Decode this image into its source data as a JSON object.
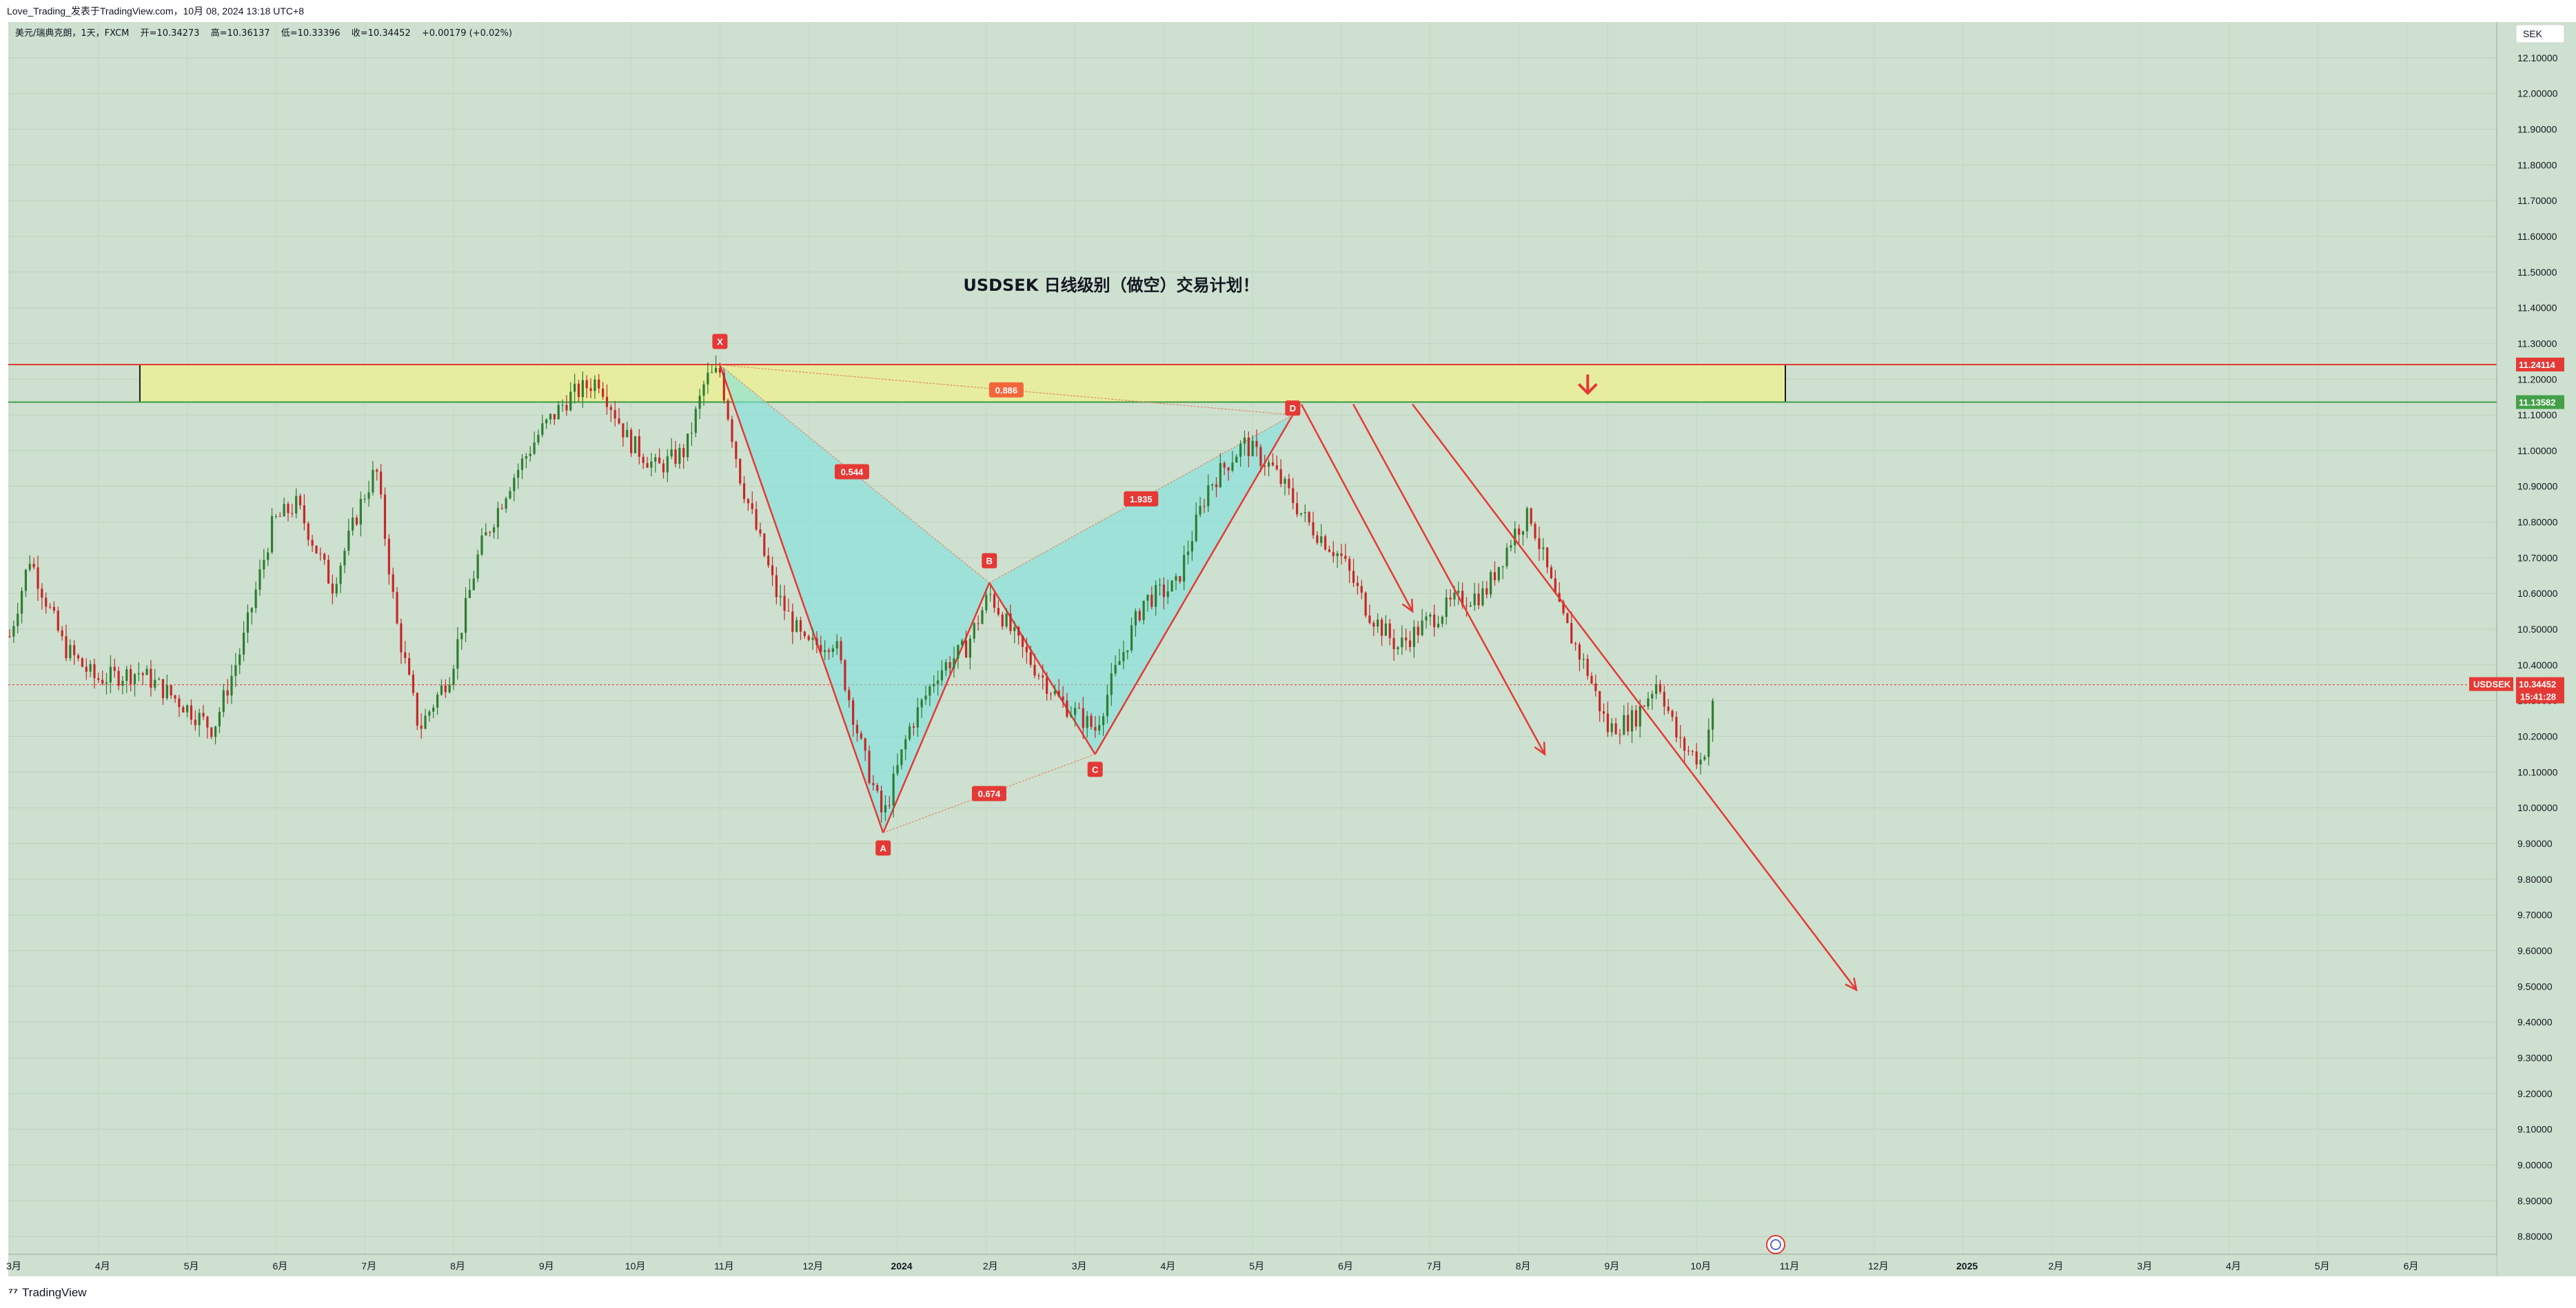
{
  "header": {
    "publisher": "Love_Trading_发表于TradingView.com，10月 08, 2024 13:18 UTC+8"
  },
  "legend": {
    "symbol": "美元/瑞典克朗，1天，FXCM",
    "open": "开=10.34273",
    "high": "高=10.36137",
    "low": "低=10.33396",
    "close": "收=10.34452",
    "change": "+0.00179 (+0.02%)"
  },
  "currency_button": "SEK",
  "footer": {
    "brand": "TradingView"
  },
  "colors": {
    "background": "#cee0cf",
    "bull": "#2e7d32",
    "bear": "#c62828",
    "resistance": "#e53935",
    "support": "#43a047",
    "zone": "#e6ed9e",
    "pattern_fill": "#7ee1dd"
  },
  "chart_data": {
    "type": "candlestick",
    "title": "USDSEK  日线级别（做空）交易计划！",
    "symbol": "USDSEK",
    "current_price": "10.34452",
    "countdown": "15:41:28",
    "ylim": [
      8.75,
      12.2
    ],
    "y_ticks": [
      "8.80000",
      "8.90000",
      "9.00000",
      "9.10000",
      "9.20000",
      "9.30000",
      "9.40000",
      "9.50000",
      "9.60000",
      "9.70000",
      "9.80000",
      "9.90000",
      "10.00000",
      "10.10000",
      "10.20000",
      "10.30000",
      "10.40000",
      "10.50000",
      "10.60000",
      "10.70000",
      "10.80000",
      "10.90000",
      "11.00000",
      "11.10000",
      "11.20000",
      "11.30000",
      "11.40000",
      "11.50000",
      "11.60000",
      "11.70000",
      "11.80000",
      "11.90000",
      "12.00000",
      "12.10000"
    ],
    "x_labels": [
      "3月",
      "4月",
      "5月",
      "6月",
      "7月",
      "8月",
      "9月",
      "10月",
      "11月",
      "12月",
      "2024",
      "2月",
      "3月",
      "4月",
      "5月",
      "6月",
      "7月",
      "8月",
      "9月",
      "10月",
      "11月",
      "12月",
      "2025",
      "2月",
      "3月",
      "4月",
      "5月",
      "6月"
    ],
    "x_months_start": "2023-03",
    "price_levels": {
      "resistance": {
        "value": 11.24114,
        "label": "11.24114"
      },
      "support": {
        "value": 11.13582,
        "label": "11.13582"
      }
    },
    "zone": {
      "x_start": "2023-04-15",
      "x_end": "2024-11-01",
      "y_low": 11.136,
      "y_high": 11.241
    },
    "harmonic_pattern": {
      "points": [
        {
          "label": "X",
          "x": "2023-11-01",
          "y": 11.24
        },
        {
          "label": "A",
          "x": "2023-12-27",
          "y": 9.93
        },
        {
          "label": "B",
          "x": "2024-02-02",
          "y": 10.63
        },
        {
          "label": "C",
          "x": "2024-03-08",
          "y": 10.15
        },
        {
          "label": "D",
          "x": "2024-05-15",
          "y": 11.1
        }
      ],
      "ratios": [
        {
          "label": "0.544",
          "between": "XA-AB"
        },
        {
          "label": "0.886",
          "between": "XD"
        },
        {
          "label": "0.674",
          "between": "AC"
        },
        {
          "label": "1.935",
          "between": "BD"
        }
      ]
    },
    "trend_lines": [
      {
        "from": {
          "x": "2024-05-18",
          "y": 11.13
        },
        "to": {
          "x": "2024-06-25",
          "y": 10.55
        },
        "arrow": true
      },
      {
        "from": {
          "x": "2024-06-05",
          "y": 11.13
        },
        "to": {
          "x": "2024-08-10",
          "y": 10.15
        },
        "arrow": true
      },
      {
        "from": {
          "x": "2024-06-25",
          "y": 11.13
        },
        "to": {
          "x": "2024-11-25",
          "y": 9.49
        },
        "arrow": true
      }
    ],
    "down_arrow": {
      "x": "2024-08-25",
      "y": 11.19
    },
    "ohlc_waypoints": [
      [
        "2023-03-01",
        10.48
      ],
      [
        "2023-03-08",
        10.7
      ],
      [
        "2023-03-20",
        10.45
      ],
      [
        "2023-03-31",
        10.36
      ],
      [
        "2023-04-15",
        10.38
      ],
      [
        "2023-04-28",
        10.3
      ],
      [
        "2023-05-10",
        10.22
      ],
      [
        "2023-05-20",
        10.45
      ],
      [
        "2023-05-31",
        10.8
      ],
      [
        "2023-06-08",
        10.85
      ],
      [
        "2023-06-20",
        10.62
      ],
      [
        "2023-06-30",
        10.86
      ],
      [
        "2023-07-05",
        10.95
      ],
      [
        "2023-07-12",
        10.52
      ],
      [
        "2023-07-20",
        10.22
      ],
      [
        "2023-07-31",
        10.38
      ],
      [
        "2023-08-10",
        10.72
      ],
      [
        "2023-08-20",
        10.9
      ],
      [
        "2023-08-31",
        11.05
      ],
      [
        "2023-09-10",
        11.15
      ],
      [
        "2023-09-20",
        11.2
      ],
      [
        "2023-09-30",
        11.03
      ],
      [
        "2023-10-10",
        10.95
      ],
      [
        "2023-10-20",
        11.0
      ],
      [
        "2023-10-27",
        11.2
      ],
      [
        "2023-11-01",
        11.22
      ],
      [
        "2023-11-08",
        10.92
      ],
      [
        "2023-11-20",
        10.6
      ],
      [
        "2023-11-30",
        10.45
      ],
      [
        "2023-12-10",
        10.47
      ],
      [
        "2023-12-20",
        10.15
      ],
      [
        "2023-12-27",
        9.97
      ],
      [
        "2024-01-05",
        10.22
      ],
      [
        "2024-01-15",
        10.38
      ],
      [
        "2024-01-25",
        10.45
      ],
      [
        "2024-02-02",
        10.6
      ],
      [
        "2024-02-12",
        10.45
      ],
      [
        "2024-02-25",
        10.3
      ],
      [
        "2024-03-08",
        10.22
      ],
      [
        "2024-03-15",
        10.38
      ],
      [
        "2024-03-25",
        10.58
      ],
      [
        "2024-04-05",
        10.62
      ],
      [
        "2024-04-16",
        10.9
      ],
      [
        "2024-04-28",
        11.02
      ],
      [
        "2024-05-08",
        10.95
      ],
      [
        "2024-05-20",
        10.8
      ],
      [
        "2024-06-01",
        10.7
      ],
      [
        "2024-06-10",
        10.55
      ],
      [
        "2024-06-20",
        10.45
      ],
      [
        "2024-06-30",
        10.52
      ],
      [
        "2024-07-10",
        10.58
      ],
      [
        "2024-07-20",
        10.6
      ],
      [
        "2024-07-31",
        10.78
      ],
      [
        "2024-08-05",
        10.82
      ],
      [
        "2024-08-15",
        10.55
      ],
      [
        "2024-08-25",
        10.38
      ],
      [
        "2024-09-01",
        10.22
      ],
      [
        "2024-09-10",
        10.25
      ],
      [
        "2024-09-18",
        10.36
      ],
      [
        "2024-09-25",
        10.18
      ],
      [
        "2024-10-03",
        10.13
      ],
      [
        "2024-10-08",
        10.34
      ]
    ]
  }
}
